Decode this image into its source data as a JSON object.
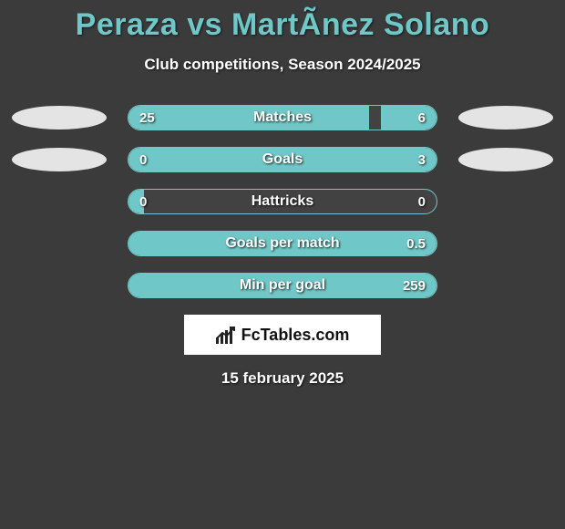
{
  "title": "Peraza vs MartÃ­nez Solano",
  "subtitle": "Club competitions, Season 2024/2025",
  "date": "15 february 2025",
  "logo_text": "FcTables.com",
  "colors": {
    "accent": "#6fc7c7",
    "track_bg": "#424242",
    "page_bg": "#3b3b3b",
    "avatar_bg": "#e4e4e4",
    "text": "#ffffff",
    "logo_bg": "#ffffff",
    "logo_text": "#111111"
  },
  "bar": {
    "track_width": 340,
    "track_height": 28,
    "border_radius": 14,
    "label_fontsize": 16,
    "value_fontsize": 15
  },
  "rows": [
    {
      "label": "Matches",
      "leftValue": "25",
      "rightValue": "6",
      "leftPct": 78,
      "rightPct": 18,
      "showAvatarLeft": true,
      "showAvatarRight": true
    },
    {
      "label": "Goals",
      "leftValue": "0",
      "rightValue": "3",
      "leftPct": 5,
      "rightPct": 95,
      "showAvatarLeft": true,
      "showAvatarRight": true
    },
    {
      "label": "Hattricks",
      "leftValue": "0",
      "rightValue": "0",
      "leftPct": 5,
      "rightPct": 0,
      "showAvatarLeft": false,
      "showAvatarRight": false
    },
    {
      "label": "Goals per match",
      "leftValue": "",
      "rightValue": "0.5",
      "leftPct": 0,
      "rightPct": 100,
      "showAvatarLeft": false,
      "showAvatarRight": false
    },
    {
      "label": "Min per goal",
      "leftValue": "",
      "rightValue": "259",
      "leftPct": 0,
      "rightPct": 100,
      "showAvatarLeft": false,
      "showAvatarRight": false
    }
  ]
}
